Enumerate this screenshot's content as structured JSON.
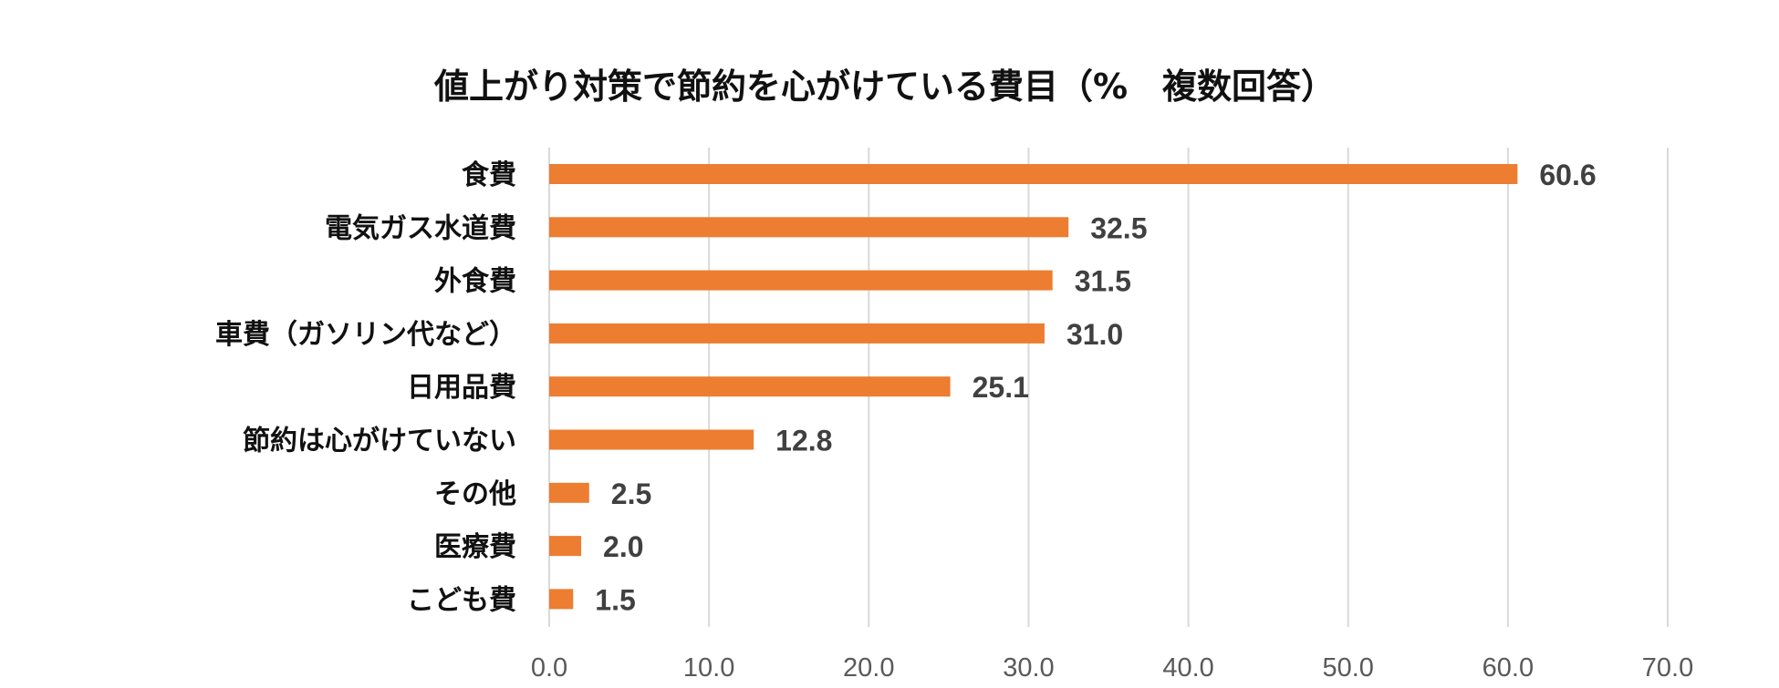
{
  "chart_data": {
    "type": "bar",
    "orientation": "horizontal",
    "title": "値上がり対策で節約を心がけている費目（%　複数回答）",
    "categories": [
      "食費",
      "電気ガス水道費",
      "外食費",
      "車費（ガソリン代など）",
      "日用品費",
      "節約は心がけていない",
      "その他",
      "医療費",
      "こども費"
    ],
    "values": [
      60.6,
      32.5,
      31.5,
      31.0,
      25.1,
      12.8,
      2.5,
      2.0,
      1.5
    ],
    "value_labels": [
      "60.6",
      "32.5",
      "31.5",
      "31.0",
      "25.1",
      "12.8",
      "2.5",
      "2.0",
      "1.5"
    ],
    "xlim": [
      0,
      70
    ],
    "x_ticks": [
      0,
      10,
      20,
      30,
      40,
      50,
      60,
      70
    ],
    "x_tick_labels": [
      "0.0",
      "10.0",
      "20.0",
      "30.0",
      "40.0",
      "50.0",
      "60.0",
      "70.0"
    ],
    "xlabel": "",
    "ylabel": "",
    "grid": true,
    "legend": "none",
    "bar_color": "#ed7d31",
    "grid_color": "#d9d9d9"
  }
}
